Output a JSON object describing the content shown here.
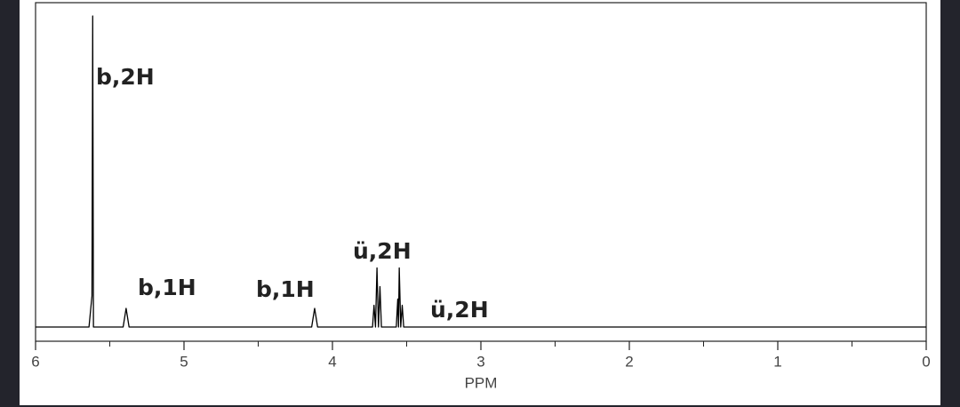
{
  "chart_data": {
    "type": "line",
    "x_label": "PPM",
    "x": [
      6.0,
      5.64,
      5.62,
      5.615,
      5.61,
      5.41,
      5.39,
      5.37,
      4.14,
      4.12,
      4.1,
      3.73,
      3.72,
      3.71,
      3.7,
      3.69,
      3.68,
      3.67,
      3.57,
      3.56,
      3.555,
      3.55,
      3.54,
      3.53,
      3.52,
      0.0
    ],
    "series": [
      {
        "color": "#000000",
        "values": [
          0,
          0,
          10,
          100,
          0,
          0,
          6,
          0,
          0,
          6,
          0,
          0,
          7,
          0,
          19,
          0,
          13,
          0,
          0,
          9,
          0,
          19,
          0,
          7,
          0,
          0
        ]
      }
    ],
    "xlim": [
      6,
      0
    ],
    "xticks": [
      6,
      5,
      4,
      3,
      2,
      1,
      0
    ],
    "xminorticks": [
      5.5,
      4.5,
      3.5,
      2.5,
      1.5,
      0.5
    ],
    "ylim": [
      0,
      100
    ],
    "annotations": [
      "b,2H",
      "b,1H",
      "b,1H",
      "ü,2H",
      "ü,2H"
    ]
  }
}
